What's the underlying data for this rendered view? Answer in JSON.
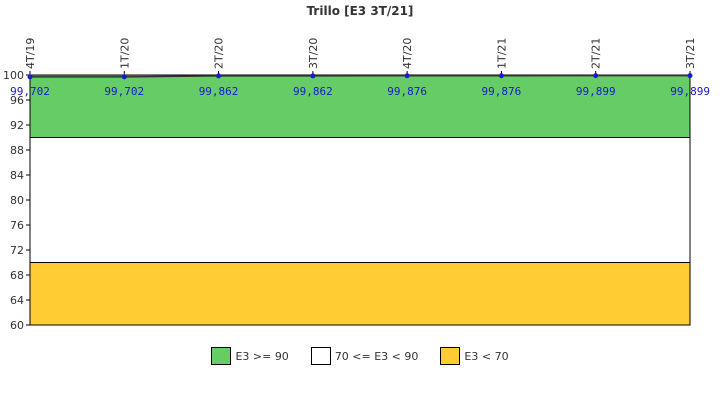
{
  "chart_data": {
    "type": "line",
    "title": "Trillo [E3 3T/21]",
    "categories": [
      "4T/19",
      "1T/20",
      "2T/20",
      "3T/20",
      "4T/20",
      "1T/21",
      "2T/21",
      "3T/21"
    ],
    "values": [
      99.702,
      99.702,
      99.862,
      99.862,
      99.876,
      99.876,
      99.899,
      99.899
    ],
    "data_labels": [
      "99,702",
      "99,702",
      "99,862",
      "99,862",
      "99,876",
      "99,876",
      "99,899",
      "99,899"
    ],
    "ylim": [
      60,
      100
    ],
    "yticks": [
      60,
      64,
      68,
      72,
      76,
      80,
      84,
      88,
      92,
      96,
      100
    ],
    "xlabel": "",
    "ylabel": "",
    "grid": false,
    "bands": [
      {
        "label": "E3 >= 90",
        "from": 90,
        "to": 100,
        "color": "#66cc66"
      },
      {
        "label": "70 <= E3 < 90",
        "from": 70,
        "to": 90,
        "color": "#ffffff"
      },
      {
        "label": "E3 < 70",
        "from": 60,
        "to": 70,
        "color": "#ffcc33"
      }
    ],
    "line_color": "#333333",
    "marker_color": "#1a1acc",
    "legend_position": "bottom"
  }
}
